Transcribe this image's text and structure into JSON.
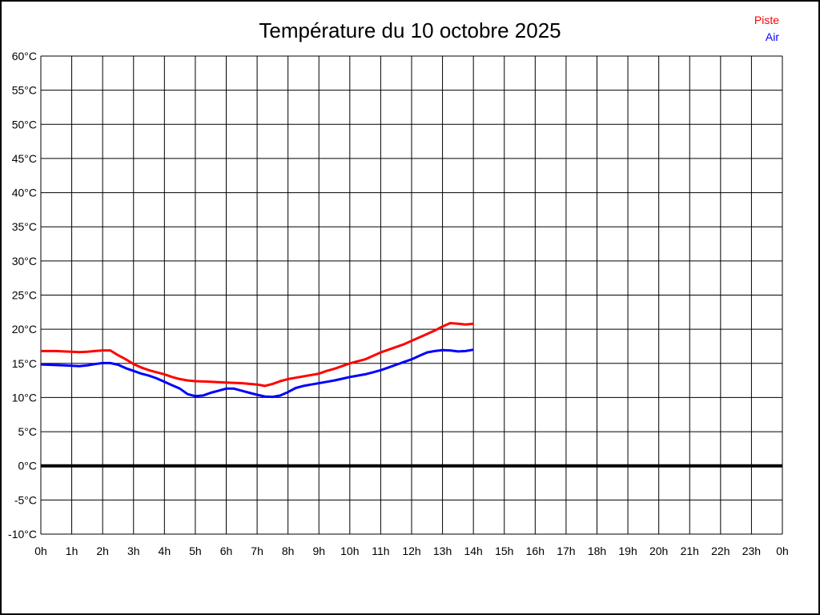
{
  "header": {
    "title": "Température du 10 octobre 2025"
  },
  "chart_data": {
    "type": "line",
    "title": "Température du 10 octobre 2025",
    "xlabel": "",
    "ylabel": "",
    "xlim": [
      0,
      24
    ],
    "ylim": [
      -10,
      60
    ],
    "grid": true,
    "grid_color": "#000000",
    "background_color": "#ffffff",
    "zero_line": {
      "value": 0,
      "color": "#000000",
      "width": 4
    },
    "x_tick_values": [
      0,
      1,
      2,
      3,
      4,
      5,
      6,
      7,
      8,
      9,
      10,
      11,
      12,
      13,
      14,
      15,
      16,
      17,
      18,
      19,
      20,
      21,
      22,
      23,
      24
    ],
    "x_tick_labels": [
      "0h",
      "1h",
      "2h",
      "3h",
      "4h",
      "5h",
      "6h",
      "7h",
      "8h",
      "9h",
      "10h",
      "11h",
      "12h",
      "13h",
      "14h",
      "15h",
      "16h",
      "17h",
      "18h",
      "19h",
      "20h",
      "21h",
      "22h",
      "23h",
      "0h"
    ],
    "y_tick_values": [
      60,
      55,
      50,
      45,
      40,
      35,
      30,
      25,
      20,
      15,
      10,
      5,
      0,
      -5,
      -10
    ],
    "y_tick_labels": [
      "60°C",
      "55°C",
      "50°C",
      "45°C",
      "40°C",
      "35°C",
      "30°C",
      "25°C",
      "20°C",
      "15°C",
      "10°C",
      "5°C",
      "0°C",
      "-5°C",
      "-10°C"
    ],
    "legend": {
      "position": "top-right",
      "entries": [
        {
          "label": "Piste",
          "color": "#ff0000"
        },
        {
          "label": "Air",
          "color": "#0000ff"
        }
      ]
    },
    "x_start": 0,
    "x_step": 0.25,
    "series": [
      {
        "name": "Piste",
        "color": "#ff0000",
        "values": [
          16.8,
          16.8,
          16.8,
          16.75,
          16.7,
          16.65,
          16.7,
          16.8,
          16.9,
          16.9,
          16.2,
          15.6,
          14.9,
          14.4,
          14.0,
          13.7,
          13.4,
          13.0,
          12.7,
          12.5,
          12.4,
          12.35,
          12.3,
          12.25,
          12.2,
          12.15,
          12.1,
          12.0,
          11.9,
          11.7,
          12.0,
          12.4,
          12.7,
          12.9,
          13.1,
          13.3,
          13.5,
          13.9,
          14.2,
          14.6,
          15.0,
          15.3,
          15.6,
          16.1,
          16.6,
          17.0,
          17.4,
          17.8,
          18.3,
          18.8,
          19.3,
          19.8,
          20.4,
          20.9,
          20.8,
          20.7,
          20.8
        ]
      },
      {
        "name": "Air",
        "color": "#0000ff",
        "values": [
          14.85,
          14.8,
          14.75,
          14.7,
          14.65,
          14.6,
          14.7,
          14.9,
          15.05,
          15.05,
          14.8,
          14.3,
          13.9,
          13.5,
          13.2,
          12.8,
          12.3,
          11.8,
          11.3,
          10.5,
          10.2,
          10.3,
          10.7,
          11.0,
          11.3,
          11.3,
          11.0,
          10.7,
          10.4,
          10.15,
          10.1,
          10.3,
          10.8,
          11.4,
          11.7,
          11.9,
          12.1,
          12.3,
          12.5,
          12.75,
          13.0,
          13.2,
          13.4,
          13.7,
          14.0,
          14.4,
          14.8,
          15.2,
          15.6,
          16.1,
          16.6,
          16.8,
          16.95,
          16.9,
          16.75,
          16.8,
          17.0
        ]
      }
    ]
  }
}
